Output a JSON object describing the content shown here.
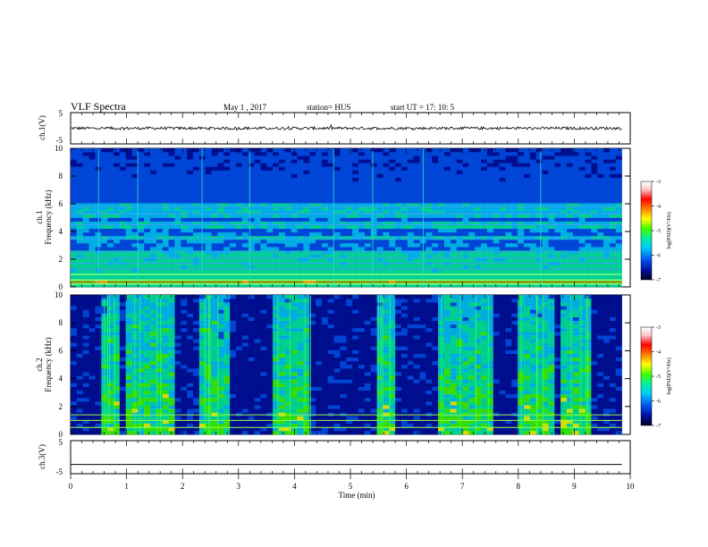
{
  "header": {
    "title": "VLF Spectra",
    "date": "May 1 , 2017",
    "station": "station= HUS",
    "start": "start UT = 17: 10: 5"
  },
  "colors": {
    "scale": [
      "#000022",
      "#0010a0",
      "#0050f0",
      "#00c8ff",
      "#00f0a0",
      "#40ff00",
      "#ffff00",
      "#ff8000",
      "#ff0000",
      "#ffc8c8",
      "#ffffff"
    ]
  },
  "chart_data": [
    {
      "type": "line",
      "panel": "ch1-waveform",
      "ylabel": "ch.1(V)",
      "yticks": [
        "5",
        "-5"
      ],
      "ylim": [
        -5,
        5
      ],
      "x": [
        0,
        9.85
      ],
      "y": [
        0,
        0
      ],
      "note": "noisy trace around 0 V"
    },
    {
      "type": "heatmap",
      "panel": "ch1-spectrogram",
      "ylabel_top": "ch.1",
      "ylabel": "Frequency (kHz)",
      "yticks": [
        "0",
        "2",
        "4",
        "6",
        "8",
        "10"
      ],
      "ylim": [
        0,
        10
      ],
      "xlim": [
        0,
        10
      ],
      "data_end_min": 9.85,
      "colorbar": {
        "label": "log(PSD)(V²/Hz)",
        "ticks": [
          "-3",
          "-4",
          "-5",
          "-6",
          "-7"
        ],
        "range": [
          -7,
          -3
        ]
      },
      "intense_bands_khz": [
        0.2,
        0.5,
        0.9,
        1.3,
        1.7,
        2.1,
        2.5,
        3.5,
        4.5,
        5.3,
        5.8
      ],
      "bright_lines_min": [
        0.5,
        1.2,
        2.35,
        3.2,
        4.7,
        5.4,
        6.3,
        8.4
      ]
    },
    {
      "type": "heatmap",
      "panel": "ch2-spectrogram",
      "ylabel_top": "ch.2",
      "ylabel": "Frequency (kHz)",
      "yticks": [
        "0",
        "2",
        "4",
        "6",
        "8",
        "10"
      ],
      "ylim": [
        0,
        10
      ],
      "xlim": [
        0,
        10
      ],
      "data_end_min": 9.85,
      "colorbar": {
        "label": "log(PSD)(V²/Hz)",
        "ticks": [
          "-3",
          "-4",
          "-5",
          "-6",
          "-7"
        ],
        "range": [
          -7,
          -3
        ]
      },
      "green_line_khz": [
        0.5,
        1.0,
        1.4
      ],
      "active_segments_min": [
        [
          0.6,
          0.9
        ],
        [
          1.0,
          1.9
        ],
        [
          2.3,
          2.8
        ],
        [
          3.6,
          4.3
        ],
        [
          5.5,
          5.8
        ],
        [
          6.6,
          7.5
        ],
        [
          8.0,
          8.6
        ],
        [
          8.8,
          9.3
        ]
      ]
    },
    {
      "type": "line",
      "panel": "ch3-waveform",
      "ylabel": "ch.3(V)",
      "yticks": [
        "5",
        "-5"
      ],
      "ylim": [
        -5,
        5
      ],
      "x": [
        0,
        9.85
      ],
      "y": [
        -2.2,
        -2.2
      ],
      "xlabel": "Time (min)",
      "xticks": [
        "0",
        "1",
        "2",
        "3",
        "4",
        "5",
        "6",
        "7",
        "8",
        "9",
        "10"
      ],
      "xlim": [
        0,
        10
      ]
    }
  ]
}
